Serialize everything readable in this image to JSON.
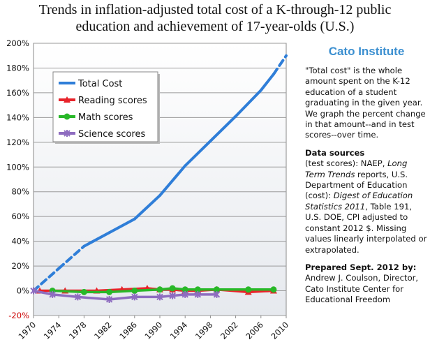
{
  "title": {
    "line1": "Trends in inflation-adjusted total cost of a K-through-12 public",
    "line2": "education and achievement of 17-year-olds  (U.S.)"
  },
  "sidebar": {
    "brand": "Cato Institute",
    "desc": "\"Total cost\" is the whole amount spent on the K-12 education of a student graduating in the given year. We graph the percent change in that amount--and in test scores--over time.",
    "sources_head": "Data sources",
    "sources_a": "(test scores): NAEP, ",
    "sources_b": "Long Term Trends",
    "sources_c": " reports, U.S. Department of Education (cost): ",
    "sources_d": "Digest of Education Statistics 2011",
    "sources_e": ", Table 191, U.S. DOE, CPI adjusted to constant 2012 $.  Missing values linearly interpolated or extrapolated.",
    "prepared_head": "Prepared Sept. 2012 by:",
    "prepared_body": "Andrew J. Coulson, Director, Cato Institute Center for Educational Freedom"
  },
  "chart_data": {
    "type": "line",
    "xlim": [
      1970,
      2010
    ],
    "ylim": [
      -20,
      200
    ],
    "x_ticks": [
      "1970",
      "1974",
      "1978",
      "1982",
      "1986",
      "1990",
      "1994",
      "1998",
      "2002",
      "2006",
      "2010"
    ],
    "y_ticks": [
      "200%",
      "180%",
      "160%",
      "140%",
      "120%",
      "100%",
      "80%",
      "60%",
      "40%",
      "20%",
      "0%",
      "-20%"
    ],
    "grid": true,
    "legend_position": "top-left",
    "series": [
      {
        "name": "Total Cost",
        "color": "#2f7ed8",
        "marker": "none",
        "dashed_segments": [
          [
            0,
            2
          ],
          [
            10,
            11
          ]
        ],
        "points": [
          [
            1970,
            0
          ],
          [
            1974,
            18
          ],
          [
            1978,
            36
          ],
          [
            1982,
            47
          ],
          [
            1986,
            58
          ],
          [
            1990,
            77
          ],
          [
            1994,
            101
          ],
          [
            1998,
            121
          ],
          [
            2002,
            141
          ],
          [
            2006,
            162
          ],
          [
            2008,
            175
          ],
          [
            2010,
            190
          ]
        ]
      },
      {
        "name": "Reading scores",
        "color": "#e8232a",
        "marker": "triangle",
        "points": [
          [
            1971,
            0
          ],
          [
            1975,
            0
          ],
          [
            1980,
            0
          ],
          [
            1984,
            1
          ],
          [
            1988,
            2
          ],
          [
            1990,
            1
          ],
          [
            1992,
            1
          ],
          [
            1994,
            0
          ],
          [
            1996,
            0
          ],
          [
            1999,
            1
          ],
          [
            2004,
            -1
          ],
          [
            2008,
            0
          ]
        ]
      },
      {
        "name": "Math scores",
        "color": "#28b828",
        "marker": "circle",
        "points": [
          [
            1973,
            0
          ],
          [
            1978,
            -1
          ],
          [
            1982,
            -1
          ],
          [
            1986,
            0
          ],
          [
            1990,
            1
          ],
          [
            1992,
            2
          ],
          [
            1994,
            1
          ],
          [
            1996,
            1
          ],
          [
            1999,
            1
          ],
          [
            2004,
            1
          ],
          [
            2008,
            1
          ]
        ]
      },
      {
        "name": "Science scores",
        "color": "#8e6cc0",
        "marker": "star",
        "points": [
          [
            1970,
            0
          ],
          [
            1973,
            -3
          ],
          [
            1977,
            -5
          ],
          [
            1982,
            -7
          ],
          [
            1986,
            -5
          ],
          [
            1990,
            -5
          ],
          [
            1992,
            -4
          ],
          [
            1994,
            -3
          ],
          [
            1996,
            -3
          ],
          [
            1999,
            -3
          ]
        ]
      }
    ]
  }
}
